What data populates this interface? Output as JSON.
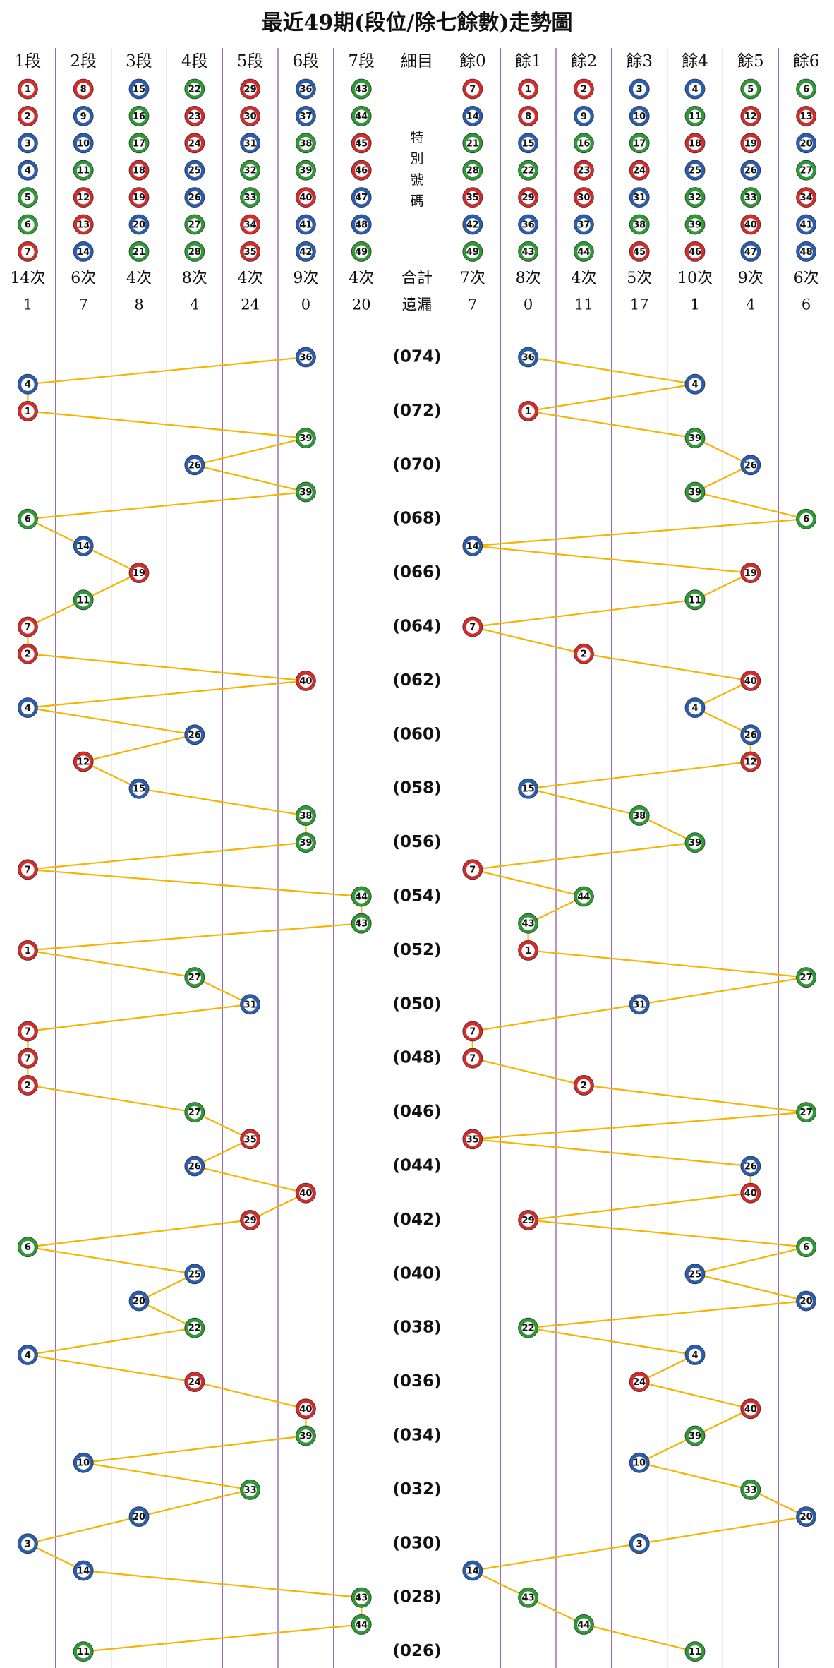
{
  "title": "最近49期(段位/除七餘數)走勢圖",
  "columns": [
    {
      "header": "1段",
      "balls": [
        1,
        2,
        3,
        4,
        5,
        6,
        7
      ],
      "count": "14次",
      "omission": 1
    },
    {
      "header": "2段",
      "balls": [
        8,
        9,
        10,
        11,
        12,
        13,
        14
      ],
      "count": "6次",
      "omission": 7
    },
    {
      "header": "3段",
      "balls": [
        15,
        16,
        17,
        18,
        19,
        20,
        21
      ],
      "count": "4次",
      "omission": 8
    },
    {
      "header": "4段",
      "balls": [
        22,
        23,
        24,
        25,
        26,
        27,
        28
      ],
      "count": "8次",
      "omission": 4
    },
    {
      "header": "5段",
      "balls": [
        29,
        30,
        31,
        32,
        33,
        34,
        35
      ],
      "count": "4次",
      "omission": 24
    },
    {
      "header": "6段",
      "balls": [
        36,
        37,
        38,
        39,
        40,
        41,
        42
      ],
      "count": "9次",
      "omission": 0
    },
    {
      "header": "7段",
      "balls": [
        43,
        44,
        45,
        46,
        47,
        48,
        49
      ],
      "count": "4次",
      "omission": 20
    },
    {
      "header": "細目",
      "note": [
        "特",
        "別",
        "號",
        "碼"
      ],
      "count": "合計",
      "omission": "遺漏"
    },
    {
      "header": "餘0",
      "balls": [
        7,
        14,
        21,
        28,
        35,
        42,
        49
      ],
      "count": "7次",
      "omission": 7
    },
    {
      "header": "餘1",
      "balls": [
        1,
        8,
        15,
        22,
        29,
        36,
        43
      ],
      "count": "8次",
      "omission": 0
    },
    {
      "header": "餘2",
      "balls": [
        2,
        9,
        16,
        23,
        30,
        37,
        44
      ],
      "count": "4次",
      "omission": 11
    },
    {
      "header": "餘3",
      "balls": [
        3,
        10,
        17,
        24,
        31,
        38,
        45
      ],
      "count": "5次",
      "omission": 17
    },
    {
      "header": "餘4",
      "balls": [
        4,
        11,
        18,
        25,
        32,
        39,
        46
      ],
      "count": "10次",
      "omission": 1
    },
    {
      "header": "餘5",
      "balls": [
        5,
        12,
        19,
        26,
        33,
        40,
        47
      ],
      "count": "9次",
      "omission": 4
    },
    {
      "header": "餘6",
      "balls": [
        6,
        13,
        20,
        27,
        34,
        41,
        48
      ],
      "count": "6次",
      "omission": 6
    }
  ],
  "ball_colors": [
    {
      "color": "#d42b2b",
      "numbers": [
        1,
        2,
        7,
        8,
        12,
        13,
        18,
        19,
        23,
        24,
        29,
        30,
        34,
        35,
        40,
        45,
        46
      ]
    },
    {
      "color": "#2a5db0",
      "numbers": [
        3,
        4,
        9,
        10,
        14,
        15,
        20,
        25,
        26,
        31,
        36,
        37,
        41,
        42,
        47,
        48
      ]
    },
    {
      "color": "#2e9a35",
      "numbers": [
        5,
        6,
        11,
        16,
        17,
        21,
        22,
        27,
        28,
        32,
        33,
        38,
        39,
        43,
        44,
        49
      ]
    }
  ],
  "line_color": "#f5b400",
  "draws": [
    {
      "period": "(074)",
      "number": 36
    },
    {
      "number": 4
    },
    {
      "period": "(072)",
      "number": 1
    },
    {
      "number": 39
    },
    {
      "period": "(070)",
      "number": 26
    },
    {
      "number": 39
    },
    {
      "period": "(068)",
      "number": 6
    },
    {
      "number": 14
    },
    {
      "period": "(066)",
      "number": 19
    },
    {
      "number": 11
    },
    {
      "period": "(064)",
      "number": 7
    },
    {
      "number": 2
    },
    {
      "period": "(062)",
      "number": 40
    },
    {
      "number": 4
    },
    {
      "period": "(060)",
      "number": 26
    },
    {
      "number": 12
    },
    {
      "period": "(058)",
      "number": 15
    },
    {
      "number": 38
    },
    {
      "period": "(056)",
      "number": 39
    },
    {
      "number": 7
    },
    {
      "period": "(054)",
      "number": 44
    },
    {
      "number": 43
    },
    {
      "period": "(052)",
      "number": 1
    },
    {
      "number": 27
    },
    {
      "period": "(050)",
      "number": 31
    },
    {
      "number": 7
    },
    {
      "period": "(048)",
      "number": 7
    },
    {
      "number": 2
    },
    {
      "period": "(046)",
      "number": 27
    },
    {
      "number": 35
    },
    {
      "period": "(044)",
      "number": 26
    },
    {
      "number": 40
    },
    {
      "period": "(042)",
      "number": 29
    },
    {
      "number": 6
    },
    {
      "period": "(040)",
      "number": 25
    },
    {
      "number": 20
    },
    {
      "period": "(038)",
      "number": 22
    },
    {
      "number": 4
    },
    {
      "period": "(036)",
      "number": 24
    },
    {
      "number": 40
    },
    {
      "period": "(034)",
      "number": 39
    },
    {
      "number": 10
    },
    {
      "period": "(032)",
      "number": 33
    },
    {
      "number": 20
    },
    {
      "period": "(030)",
      "number": 3
    },
    {
      "number": 14
    },
    {
      "period": "(028)",
      "number": 43
    },
    {
      "number": 44
    },
    {
      "period": "(026)",
      "number": 11
    }
  ]
}
